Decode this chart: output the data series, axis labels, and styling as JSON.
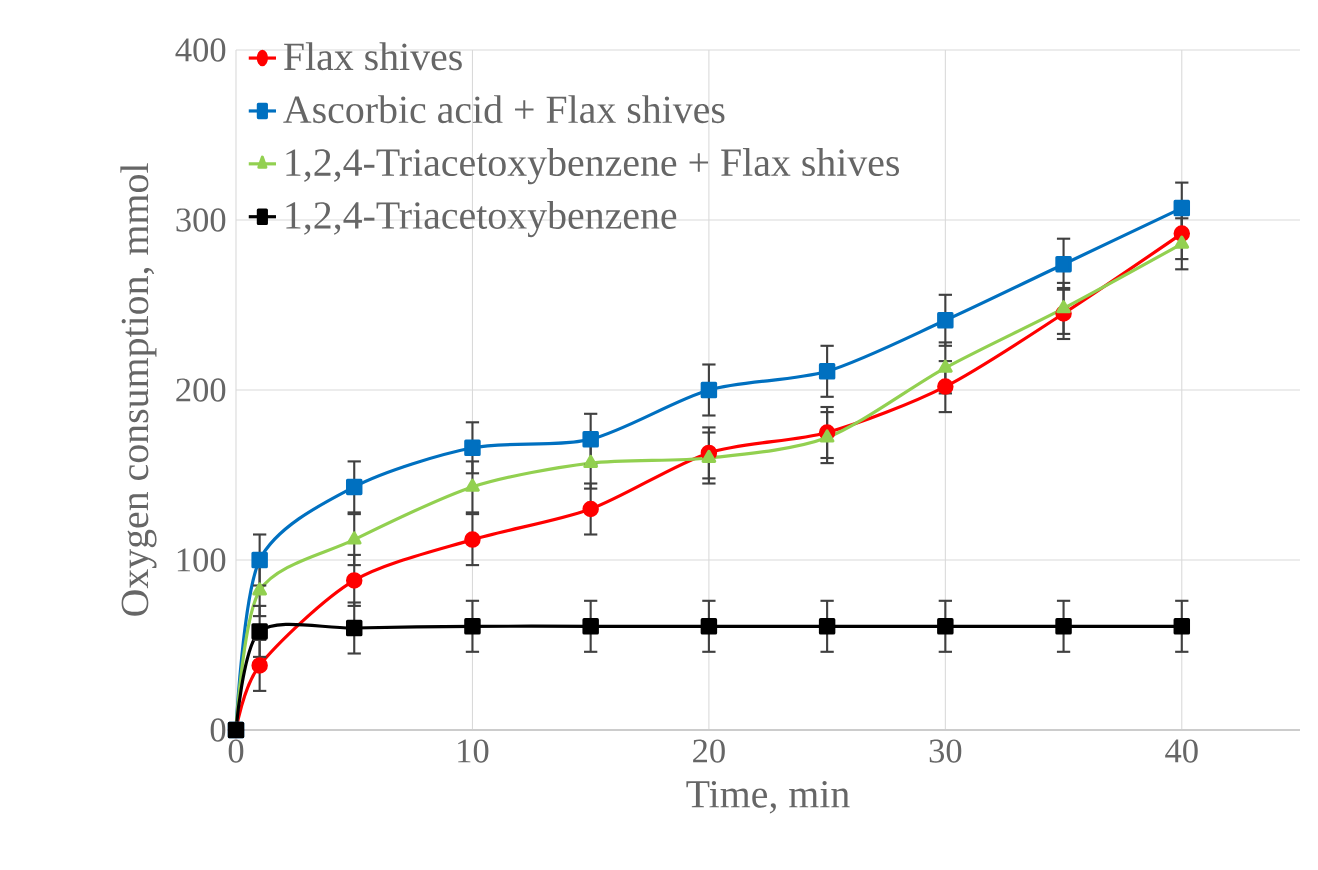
{
  "chart_data": {
    "type": "line",
    "xlabel": "Time, min",
    "ylabel": "Oxygen consumption, mmol",
    "x": [
      0,
      1,
      5,
      10,
      15,
      20,
      25,
      30,
      35,
      40
    ],
    "xlim": [
      0,
      45
    ],
    "xticks": [
      0,
      10,
      20,
      30,
      40
    ],
    "ylim": [
      0,
      400
    ],
    "yticks": [
      0,
      100,
      200,
      300,
      400
    ],
    "grid": true,
    "legend": "top left",
    "series": [
      {
        "name": "Flax shives",
        "color": "#ff0000",
        "marker": "circle",
        "values": [
          0,
          38,
          88,
          112,
          130,
          163,
          175,
          202,
          245,
          292
        ],
        "errors": [
          null,
          15,
          15,
          15,
          15,
          15,
          15,
          15,
          15,
          15
        ]
      },
      {
        "name": "Ascorbic acid + Flax shives",
        "color": "#0070c0",
        "marker": "square",
        "values": [
          0,
          100,
          143,
          166,
          171,
          200,
          211,
          241,
          274,
          307
        ],
        "errors": [
          null,
          15,
          15,
          15,
          15,
          15,
          15,
          15,
          15,
          15
        ]
      },
      {
        "name": "1,2,4-Triacetoxybenzene + Flax shives",
        "color": "#92d050",
        "marker": "triangle",
        "values": [
          0,
          82,
          112,
          143,
          157,
          160,
          172,
          213,
          248,
          286
        ],
        "errors": [
          null,
          15,
          15,
          15,
          15,
          15,
          15,
          15,
          15,
          15
        ]
      },
      {
        "name": "1,2,4-Triacetoxybenzene",
        "color": "#000000",
        "marker": "square",
        "values": [
          0,
          58,
          60,
          61,
          61,
          61,
          61,
          61,
          61,
          61
        ],
        "errors": [
          null,
          15,
          15,
          15,
          15,
          15,
          15,
          15,
          15,
          15
        ]
      }
    ]
  }
}
